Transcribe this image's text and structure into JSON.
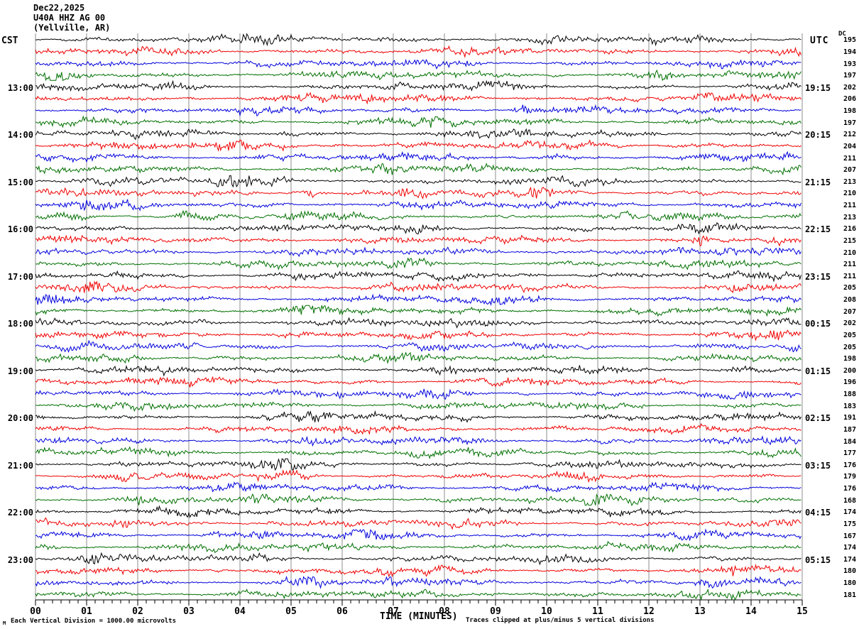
{
  "header": {
    "date": "Dec22,2025",
    "station": "U40A HHZ AG 00",
    "location": "(Yellville, AR)",
    "left_timezone": "CST",
    "right_timezone": "UTC",
    "dc_column_header": "DC"
  },
  "footer": {
    "scale_note": "Each Vertical Division = 1000.00 microvolts",
    "x_axis_label": "TIME (MINUTES)",
    "clip_note": "Traces clipped at plus/minus 5 vertical divisions",
    "corner_mark": "M"
  },
  "chart_data": {
    "type": "line",
    "title": "U40A HHZ AG 00 (Yellville, AR) helicorder seismogram, Dec22,2025",
    "description": "48 fifteen-minute seismogram trace rows (4 rows per hour), colors cycling black/red/blue/green, clipped noise waveforms on minute gridlines",
    "row_count": 48,
    "rows_per_hour": 4,
    "minutes_per_row": 15,
    "x_axis": {
      "label": "TIME (MINUTES)",
      "range_minutes": [
        0,
        15
      ],
      "major_ticks": [
        "00",
        "01",
        "02",
        "03",
        "04",
        "05",
        "06",
        "07",
        "08",
        "09",
        "10",
        "11",
        "12",
        "13",
        "14",
        "15"
      ],
      "minor_ticks_per_division": 5
    },
    "trace_color_cycle": [
      "#000000",
      "#f00000",
      "#0000dd",
      "#007000"
    ],
    "grid_color": "#8c8c8c",
    "axis_color": "#000000",
    "labeled_row_start_index": 4,
    "label_row_step": 4,
    "left_hour_labels": [
      "13:00",
      "14:00",
      "15:00",
      "16:00",
      "17:00",
      "18:00",
      "19:00",
      "20:00",
      "21:00",
      "22:00",
      "23:00"
    ],
    "right_hour_labels": [
      "19:15",
      "20:15",
      "21:15",
      "22:15",
      "23:15",
      "00:15",
      "01:15",
      "02:15",
      "03:15",
      "04:15",
      "05:15"
    ],
    "dc_values": [
      195,
      194,
      193,
      197,
      202,
      206,
      198,
      197,
      212,
      204,
      211,
      207,
      213,
      210,
      211,
      213,
      216,
      215,
      210,
      211,
      211,
      205,
      208,
      207,
      202,
      205,
      205,
      198,
      200,
      196,
      188,
      183,
      191,
      187,
      184,
      177,
      176,
      179,
      176,
      168,
      174,
      175,
      167,
      174,
      174,
      180,
      180,
      181
    ],
    "events": [
      {
        "row": 9,
        "minute": 5.9,
        "width_minutes": 0.5,
        "amplitude_factor": 2.0,
        "note": "elevated activity on red trace after 14:00 CST"
      },
      {
        "row": 13,
        "minute": 5.4,
        "width_minutes": 0.45,
        "amplitude_factor": 3.2,
        "note": "burst on red trace after 15:00 CST"
      },
      {
        "row": 17,
        "minute": 13.0,
        "width_minutes": 0.2,
        "amplitude_factor": 3.0,
        "note": "spike on red trace after 16:00 CST"
      }
    ]
  }
}
